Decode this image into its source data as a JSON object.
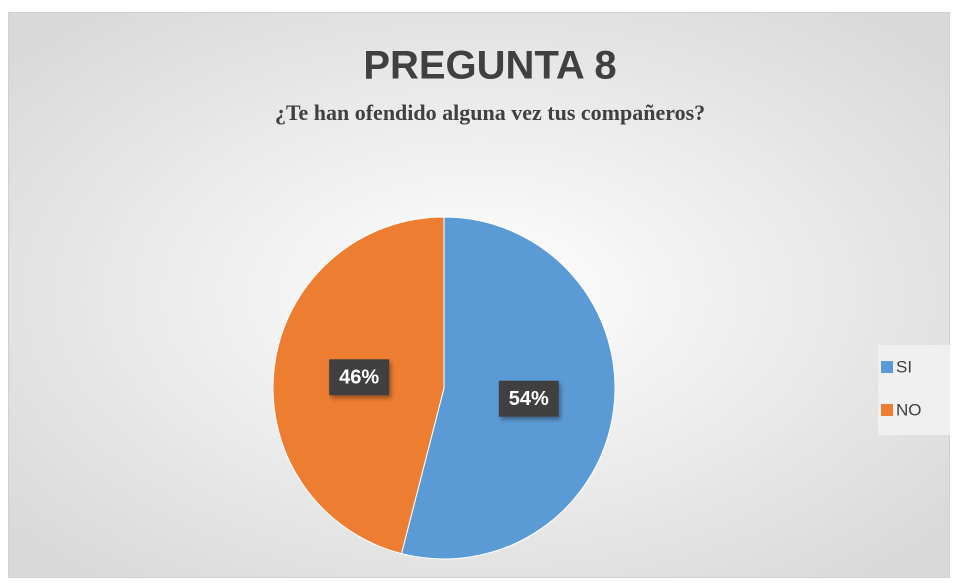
{
  "chart_data": {
    "type": "pie",
    "title": "PREGUNTA 8",
    "subtitle": "¿Te han ofendido alguna vez tus compañeros?",
    "categories": [
      "SI",
      "NO"
    ],
    "values": [
      54,
      46
    ],
    "value_labels": [
      "54%",
      "46%"
    ],
    "colors": [
      "#5b9bd5",
      "#ed7d31"
    ],
    "legend": "right"
  }
}
